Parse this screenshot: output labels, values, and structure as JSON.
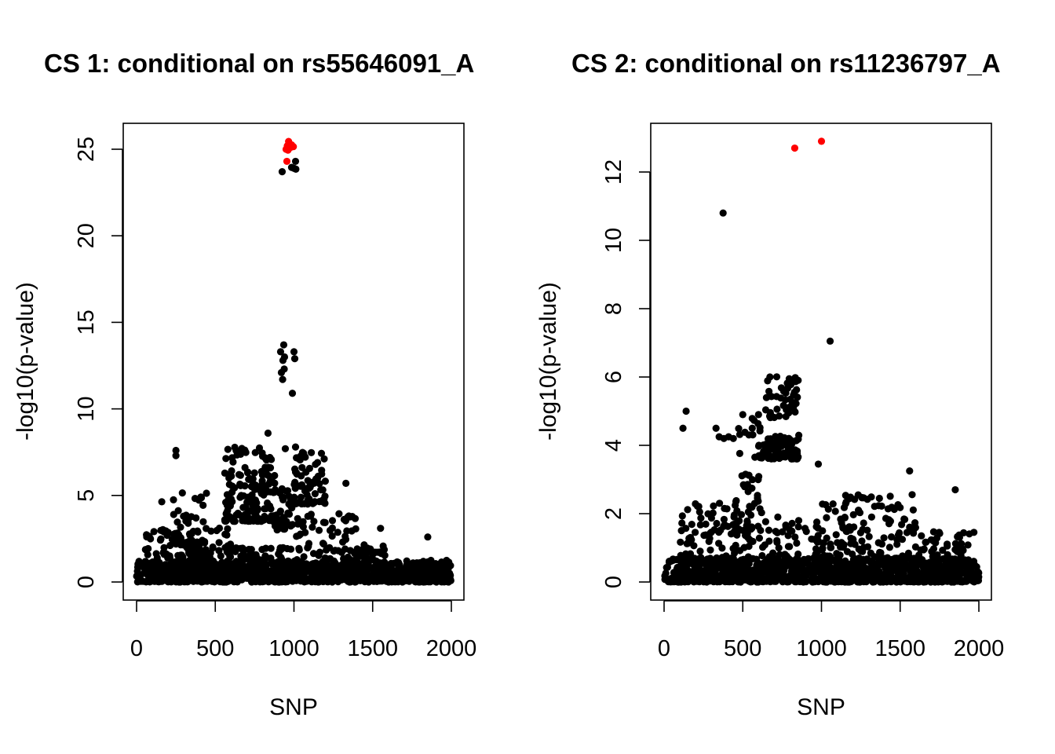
{
  "chart_data": [
    {
      "type": "scatter",
      "title": "CS 1: conditional on rs55646091_A",
      "xlabel": "SNP",
      "ylabel": "-log10(p-value)",
      "xlim": [
        0,
        2000
      ],
      "ylim": [
        0,
        25.5
      ],
      "xticks": [
        0,
        500,
        1000,
        1500,
        2000
      ],
      "yticks": [
        0,
        5,
        10,
        15,
        20,
        25
      ],
      "colors": {
        "points": "#000000",
        "highlight": "#ff0000"
      },
      "highlighted_points": [
        {
          "x": 950,
          "y": 25.0
        },
        {
          "x": 958,
          "y": 25.2
        },
        {
          "x": 962,
          "y": 24.95
        },
        {
          "x": 966,
          "y": 25.45
        },
        {
          "x": 972,
          "y": 25.3
        },
        {
          "x": 978,
          "y": 25.1
        },
        {
          "x": 985,
          "y": 25.25
        },
        {
          "x": 996,
          "y": 25.15
        },
        {
          "x": 955,
          "y": 24.3
        }
      ],
      "notable_points": [
        {
          "x": 925,
          "y": 23.7
        },
        {
          "x": 985,
          "y": 23.95
        },
        {
          "x": 1000,
          "y": 23.9
        },
        {
          "x": 1010,
          "y": 24.3
        },
        {
          "x": 1012,
          "y": 23.85
        },
        {
          "x": 915,
          "y": 13.3
        },
        {
          "x": 930,
          "y": 12.8
        },
        {
          "x": 935,
          "y": 13.7
        },
        {
          "x": 940,
          "y": 13.0
        },
        {
          "x": 920,
          "y": 12.1
        },
        {
          "x": 928,
          "y": 11.7
        },
        {
          "x": 938,
          "y": 12.3
        },
        {
          "x": 1000,
          "y": 13.3
        },
        {
          "x": 1005,
          "y": 12.9
        },
        {
          "x": 990,
          "y": 10.9
        },
        {
          "x": 835,
          "y": 8.6
        },
        {
          "x": 250,
          "y": 7.6
        },
        {
          "x": 250,
          "y": 7.3
        },
        {
          "x": 945,
          "y": 7.7
        },
        {
          "x": 1010,
          "y": 7.8
        },
        {
          "x": 1150,
          "y": 6.9
        },
        {
          "x": 1330,
          "y": 5.7
        },
        {
          "x": 1550,
          "y": 3.1
        },
        {
          "x": 1850,
          "y": 2.6
        }
      ],
      "clusters": [
        {
          "x": [
            0,
            2000
          ],
          "y": [
            0,
            1.2
          ],
          "n": 900
        },
        {
          "x": [
            50,
            600
          ],
          "y": [
            0.5,
            3.2
          ],
          "n": 170
        },
        {
          "x": [
            150,
            450
          ],
          "y": [
            1.5,
            5.2
          ],
          "n": 45
        },
        {
          "x": [
            560,
            880
          ],
          "y": [
            3.5,
            7.8
          ],
          "n": 160
        },
        {
          "x": [
            560,
            1000
          ],
          "y": [
            0.5,
            2.0
          ],
          "n": 90
        },
        {
          "x": [
            880,
            1000
          ],
          "y": [
            3.0,
            5.5
          ],
          "n": 40
        },
        {
          "x": [
            1000,
            1200
          ],
          "y": [
            4.5,
            7.5
          ],
          "n": 70
        },
        {
          "x": [
            1000,
            1400
          ],
          "y": [
            0.5,
            4.0
          ],
          "n": 110
        },
        {
          "x": [
            1400,
            1600
          ],
          "y": [
            0.3,
            2.2
          ],
          "n": 70
        },
        {
          "x": [
            1600,
            2000
          ],
          "y": [
            0.1,
            1.3
          ],
          "n": 90
        }
      ]
    },
    {
      "type": "scatter",
      "title": "CS 2: conditional on rs11236797_A",
      "xlabel": "SNP",
      "ylabel": "-log10(p-value)",
      "xlim": [
        0,
        2000
      ],
      "ylim": [
        0,
        12.9
      ],
      "xticks": [
        0,
        500,
        1000,
        1500,
        2000
      ],
      "yticks": [
        0,
        2,
        4,
        6,
        8,
        10,
        12
      ],
      "colors": {
        "points": "#000000",
        "highlight": "#ff0000"
      },
      "highlighted_points": [
        {
          "x": 830,
          "y": 12.7
        },
        {
          "x": 1000,
          "y": 12.9
        }
      ],
      "notable_points": [
        {
          "x": 375,
          "y": 10.8
        },
        {
          "x": 1055,
          "y": 7.05
        },
        {
          "x": 140,
          "y": 5.0
        },
        {
          "x": 120,
          "y": 4.5
        },
        {
          "x": 980,
          "y": 3.45
        },
        {
          "x": 1560,
          "y": 3.25
        },
        {
          "x": 1850,
          "y": 2.7
        },
        {
          "x": 330,
          "y": 4.5
        },
        {
          "x": 350,
          "y": 4.25
        },
        {
          "x": 380,
          "y": 4.2
        },
        {
          "x": 410,
          "y": 4.25
        },
        {
          "x": 440,
          "y": 4.2
        },
        {
          "x": 500,
          "y": 4.9
        },
        {
          "x": 560,
          "y": 4.5
        },
        {
          "x": 600,
          "y": 4.9
        }
      ],
      "clusters": [
        {
          "x": [
            0,
            2000
          ],
          "y": [
            0,
            0.7
          ],
          "n": 900
        },
        {
          "x": [
            100,
            600
          ],
          "y": [
            0.5,
            2.5
          ],
          "n": 110
        },
        {
          "x": [
            450,
            620
          ],
          "y": [
            1.5,
            4.8
          ],
          "n": 45
        },
        {
          "x": [
            600,
            860
          ],
          "y": [
            3.6,
            4.3
          ],
          "n": 90
        },
        {
          "x": [
            640,
            860
          ],
          "y": [
            4.8,
            6.1
          ],
          "n": 45
        },
        {
          "x": [
            600,
            1000
          ],
          "y": [
            0.3,
            2.0
          ],
          "n": 80
        },
        {
          "x": [
            1000,
            1600
          ],
          "y": [
            0.3,
            2.6
          ],
          "n": 180
        },
        {
          "x": [
            1600,
            2000
          ],
          "y": [
            0.2,
            1.5
          ],
          "n": 80
        }
      ]
    }
  ]
}
